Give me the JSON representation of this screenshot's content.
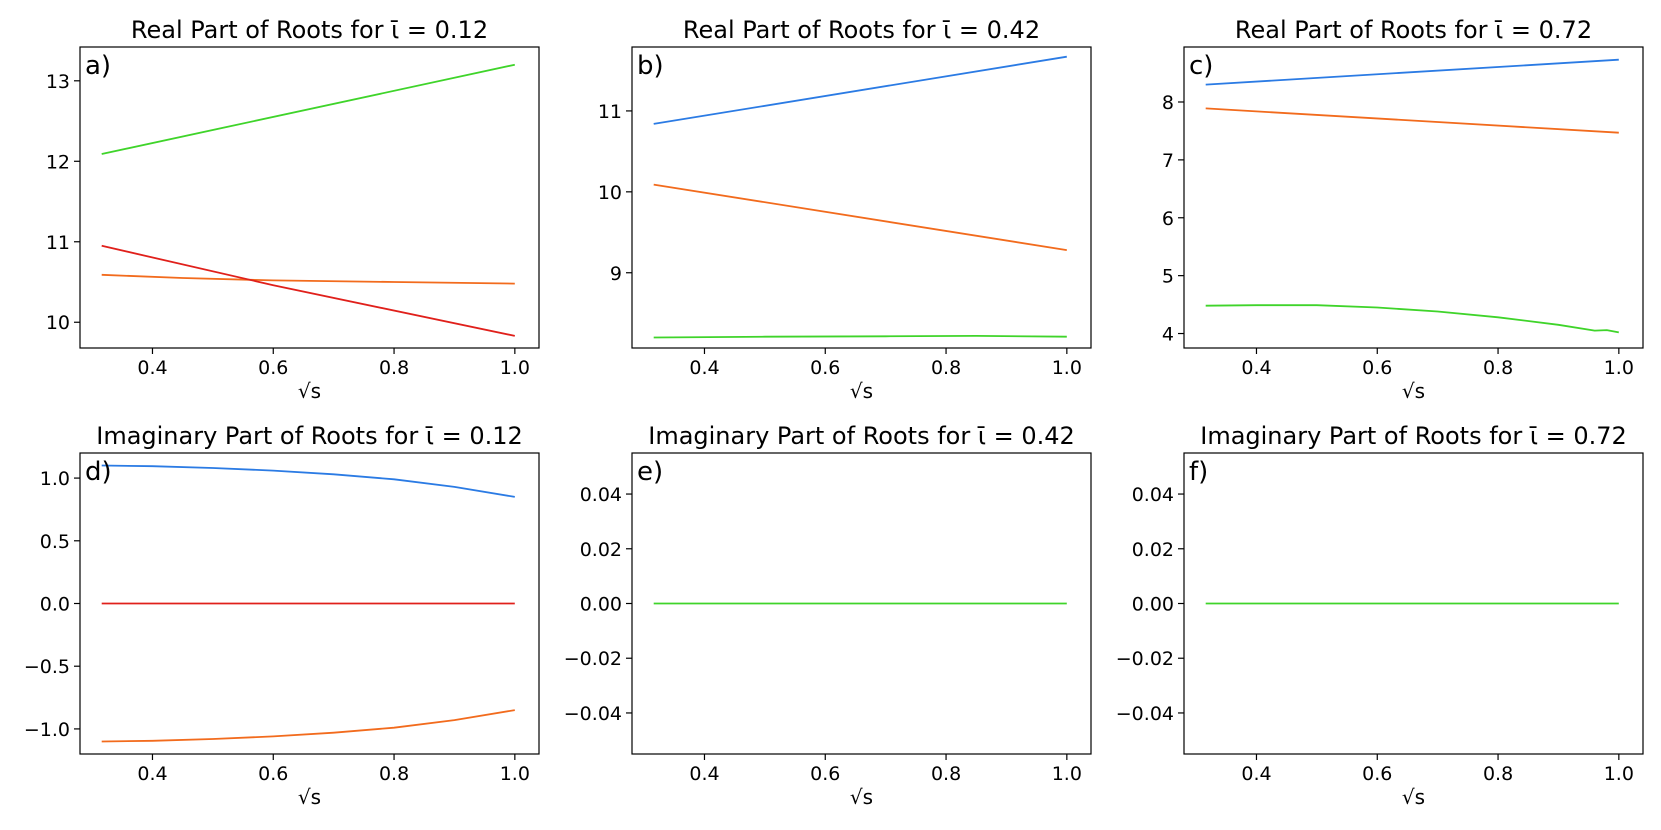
{
  "figure": {
    "colors": {
      "blue": "#2b7be4",
      "orange": "#f26b1d",
      "green": "#3fd42a",
      "red": "#e0201b"
    }
  },
  "chart_data": [
    {
      "type": "line",
      "letter": "a)",
      "title": "Real Part of Roots for ῑ = 0.12",
      "xlabel": "√s",
      "ylabel": "",
      "xlim": [
        0.28,
        1.04
      ],
      "ylim": [
        9.68,
        13.42
      ],
      "xticks": [
        0.4,
        0.6,
        0.8,
        1.0
      ],
      "xtick_labels": [
        "0.4",
        "0.6",
        "0.8",
        "1.0"
      ],
      "yticks": [
        10,
        11,
        12,
        13
      ],
      "ytick_labels": [
        "10",
        "11",
        "12",
        "13"
      ],
      "series": [
        {
          "name": "green",
          "color": "#3fd42a",
          "x": [
            0.316,
            1.0
          ],
          "y": [
            12.09,
            13.2
          ]
        },
        {
          "name": "orange",
          "color": "#f26b1d",
          "x": [
            0.316,
            0.45,
            0.6,
            0.8,
            1.0
          ],
          "y": [
            10.59,
            10.55,
            10.52,
            10.5,
            10.48
          ]
        },
        {
          "name": "red",
          "color": "#e0201b",
          "x": [
            0.316,
            0.6,
            1.0
          ],
          "y": [
            10.95,
            10.46,
            9.83
          ]
        }
      ]
    },
    {
      "type": "line",
      "letter": "b)",
      "title": "Real Part of Roots for ῑ = 0.42",
      "xlabel": "√s",
      "ylabel": "",
      "xlim": [
        0.28,
        1.04
      ],
      "ylim": [
        8.07,
        11.79
      ],
      "xticks": [
        0.4,
        0.6,
        0.8,
        1.0
      ],
      "xtick_labels": [
        "0.4",
        "0.6",
        "0.8",
        "1.0"
      ],
      "yticks": [
        9,
        10,
        11
      ],
      "ytick_labels": [
        "9",
        "10",
        "11"
      ],
      "series": [
        {
          "name": "blue",
          "color": "#2b7be4",
          "x": [
            0.316,
            1.0
          ],
          "y": [
            10.84,
            11.67
          ]
        },
        {
          "name": "orange",
          "color": "#f26b1d",
          "x": [
            0.316,
            1.0
          ],
          "y": [
            10.09,
            9.28
          ]
        },
        {
          "name": "green",
          "color": "#3fd42a",
          "x": [
            0.316,
            0.5,
            0.7,
            0.85,
            1.0
          ],
          "y": [
            8.2,
            8.21,
            8.215,
            8.22,
            8.21
          ]
        }
      ]
    },
    {
      "type": "line",
      "letter": "c)",
      "title": "Real Part of Roots for ῑ = 0.72",
      "xlabel": "√s",
      "ylabel": "",
      "xlim": [
        0.28,
        1.04
      ],
      "ylim": [
        3.75,
        8.95
      ],
      "xticks": [
        0.4,
        0.6,
        0.8,
        1.0
      ],
      "xtick_labels": [
        "0.4",
        "0.6",
        "0.8",
        "1.0"
      ],
      "yticks": [
        4,
        5,
        6,
        7,
        8
      ],
      "ytick_labels": [
        "4",
        "5",
        "6",
        "7",
        "8"
      ],
      "series": [
        {
          "name": "blue",
          "color": "#2b7be4",
          "x": [
            0.316,
            1.0
          ],
          "y": [
            8.3,
            8.73
          ]
        },
        {
          "name": "orange",
          "color": "#f26b1d",
          "x": [
            0.316,
            1.0
          ],
          "y": [
            7.89,
            7.47
          ]
        },
        {
          "name": "green",
          "color": "#3fd42a",
          "x": [
            0.316,
            0.4,
            0.5,
            0.6,
            0.7,
            0.8,
            0.9,
            0.96,
            0.98,
            1.0
          ],
          "y": [
            4.48,
            4.49,
            4.49,
            4.45,
            4.38,
            4.28,
            4.15,
            4.05,
            4.06,
            4.02
          ]
        }
      ]
    },
    {
      "type": "line",
      "letter": "d)",
      "title": "Imaginary Part of Roots for ῑ = 0.12",
      "xlabel": "√s",
      "ylabel": "",
      "xlim": [
        0.28,
        1.04
      ],
      "ylim": [
        -1.2,
        1.2
      ],
      "xticks": [
        0.4,
        0.6,
        0.8,
        1.0
      ],
      "xtick_labels": [
        "0.4",
        "0.6",
        "0.8",
        "1.0"
      ],
      "yticks": [
        -1.0,
        -0.5,
        0.0,
        0.5,
        1.0
      ],
      "ytick_labels": [
        "−1.0",
        "−0.5",
        "0.0",
        "0.5",
        "1.0"
      ],
      "series": [
        {
          "name": "blue",
          "color": "#2b7be4",
          "x": [
            0.316,
            0.4,
            0.5,
            0.6,
            0.7,
            0.8,
            0.9,
            1.0
          ],
          "y": [
            1.1,
            1.095,
            1.08,
            1.06,
            1.03,
            0.99,
            0.93,
            0.85
          ]
        },
        {
          "name": "red",
          "color": "#e0201b",
          "x": [
            0.316,
            1.0
          ],
          "y": [
            0.0,
            0.0
          ]
        },
        {
          "name": "orange",
          "color": "#f26b1d",
          "x": [
            0.316,
            0.4,
            0.5,
            0.6,
            0.7,
            0.8,
            0.9,
            1.0
          ],
          "y": [
            -1.1,
            -1.095,
            -1.08,
            -1.06,
            -1.03,
            -0.99,
            -0.93,
            -0.85
          ]
        }
      ]
    },
    {
      "type": "line",
      "letter": "e)",
      "title": "Imaginary Part of Roots for ῑ = 0.42",
      "xlabel": "√s",
      "ylabel": "",
      "xlim": [
        0.28,
        1.04
      ],
      "ylim": [
        -0.055,
        0.055
      ],
      "xticks": [
        0.4,
        0.6,
        0.8,
        1.0
      ],
      "xtick_labels": [
        "0.4",
        "0.6",
        "0.8",
        "1.0"
      ],
      "yticks": [
        -0.04,
        -0.02,
        0.0,
        0.02,
        0.04
      ],
      "ytick_labels": [
        "−0.04",
        "−0.02",
        "0.00",
        "0.02",
        "0.04"
      ],
      "series": [
        {
          "name": "green",
          "color": "#3fd42a",
          "x": [
            0.316,
            1.0
          ],
          "y": [
            0.0,
            0.0
          ]
        }
      ]
    },
    {
      "type": "line",
      "letter": "f)",
      "title": "Imaginary Part of Roots for ῑ = 0.72",
      "xlabel": "√s",
      "ylabel": "",
      "xlim": [
        0.28,
        1.04
      ],
      "ylim": [
        -0.055,
        0.055
      ],
      "xticks": [
        0.4,
        0.6,
        0.8,
        1.0
      ],
      "xtick_labels": [
        "0.4",
        "0.6",
        "0.8",
        "1.0"
      ],
      "yticks": [
        -0.04,
        -0.02,
        0.0,
        0.02,
        0.04
      ],
      "ytick_labels": [
        "−0.04",
        "−0.02",
        "0.00",
        "0.02",
        "0.04"
      ],
      "series": [
        {
          "name": "green",
          "color": "#3fd42a",
          "x": [
            0.316,
            1.0
          ],
          "y": [
            0.0,
            0.0
          ]
        }
      ]
    }
  ]
}
